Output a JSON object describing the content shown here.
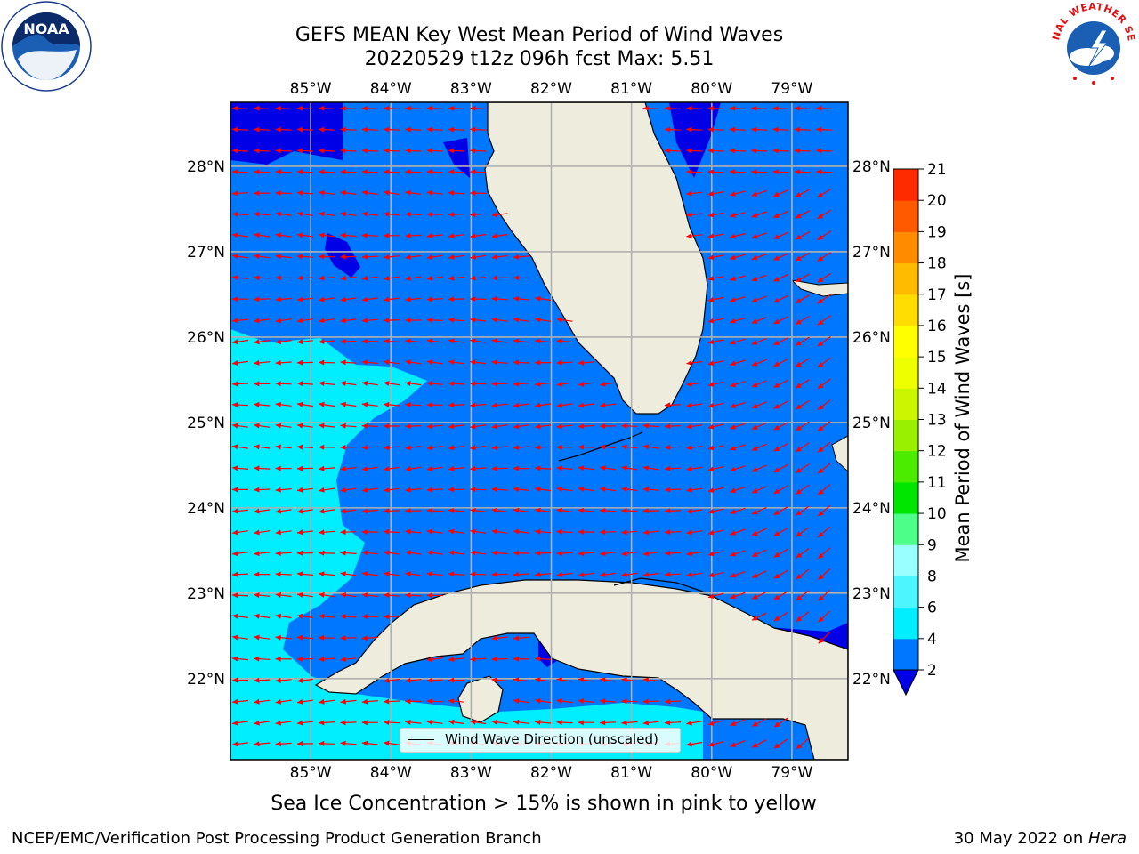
{
  "title": {
    "line1": "GEFS MEAN Key West Mean Period of Wind Waves",
    "line2": "20220529 t12z 096h fcst   Max: 5.51"
  },
  "map": {
    "lon_ticks": [
      "85°W",
      "84°W",
      "83°W",
      "82°W",
      "81°W",
      "80°W",
      "79°W"
    ],
    "lat_ticks": [
      "28°N",
      "27°N",
      "26°N",
      "25°N",
      "24°N",
      "23°N",
      "22°N"
    ],
    "lon_range": [
      -86,
      -78.3
    ],
    "lat_range": [
      21.05,
      28.75
    ],
    "colors": {
      "land": "#eeeddd",
      "band_2_4": "#0077ff",
      "band_4_6": "#00eeff",
      "below_2": "#0000e6",
      "arrow": "#ff0000",
      "grid": "#b0b0b0",
      "coast": "#000000"
    },
    "legend": "Wind Wave Direction (unscaled)"
  },
  "colorbar": {
    "label": "Mean Period of Wind Waves [s]",
    "ticks": [
      "2",
      "4",
      "6",
      "8",
      "9",
      "10",
      "11",
      "12",
      "13",
      "14",
      "15",
      "16",
      "17",
      "18",
      "19",
      "20",
      "21"
    ],
    "colors": [
      "#0077ff",
      "#00eeff",
      "#4df5ff",
      "#99ffff",
      "#4dff88",
      "#00e600",
      "#4cec00",
      "#99f000",
      "#ccf500",
      "#eeff00",
      "#ffff00",
      "#ffdd00",
      "#ffbb00",
      "#ff8c00",
      "#ff5a00",
      "#ff2b00",
      "#ff0000"
    ],
    "extend_color": "#0000e6"
  },
  "sea_ice_note": "Sea Ice Concentration > 15% is shown in pink to yellow",
  "footer": {
    "left": "NCEP/EMC/Verification Post Processing Product Generation Branch",
    "date": "30 May 2022 on ",
    "host": "Hera"
  },
  "logos": {
    "noaa": "NOAA",
    "nws_text": "NATIONAL WEATHER SERVICE"
  }
}
